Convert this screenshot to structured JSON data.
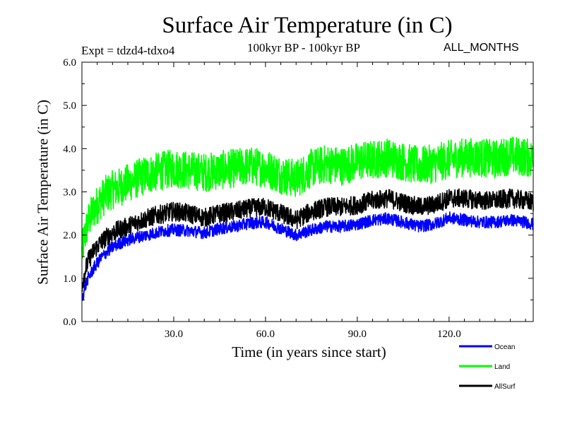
{
  "chart_data": {
    "type": "line",
    "title": "Surface Air Temperature (in C)",
    "subtitle": "100kyr BP - 100kyr BP",
    "expt_label": "Expt = tdzd4-tdxo4",
    "months_label": "ALL_MONTHS",
    "xlabel": "Time (in years since start)",
    "ylabel": "Surface Air Temperature (in C)",
    "xlim": [
      0,
      147.5
    ],
    "ylim": [
      0.0,
      6.0
    ],
    "x_ticks": [
      30,
      60,
      90,
      120
    ],
    "x_tick_labels": [
      "30.0",
      "60.0",
      "90.0",
      "120.0"
    ],
    "y_ticks": [
      0,
      1,
      2,
      3,
      4,
      5,
      6
    ],
    "y_tick_labels": [
      "0.0",
      "1.0",
      "2.0",
      "3.0",
      "4.0",
      "5.0",
      "6.0"
    ],
    "legend_position": "bottom-right, outside plot",
    "series": [
      {
        "name": "Ocean",
        "color": "#0000ff",
        "x": [
          0,
          1,
          2,
          4,
          6,
          8,
          10,
          12,
          15,
          18,
          21,
          24,
          27,
          30,
          35,
          40,
          45,
          50,
          55,
          60,
          65,
          70,
          75,
          80,
          85,
          90,
          95,
          100,
          105,
          110,
          115,
          120,
          125,
          130,
          135,
          140,
          145,
          147.5
        ],
        "values": [
          0.5,
          0.8,
          1.0,
          1.25,
          1.45,
          1.6,
          1.72,
          1.8,
          1.88,
          1.95,
          2.0,
          2.05,
          2.1,
          2.12,
          2.1,
          2.05,
          2.15,
          2.2,
          2.28,
          2.3,
          2.15,
          2.0,
          2.12,
          2.2,
          2.2,
          2.25,
          2.35,
          2.38,
          2.3,
          2.2,
          2.25,
          2.4,
          2.35,
          2.3,
          2.3,
          2.35,
          2.3,
          2.25
        ],
        "noise": 0.14
      },
      {
        "name": "Land",
        "color": "#00ff00",
        "x": [
          0,
          1,
          2,
          4,
          6,
          8,
          10,
          12,
          15,
          18,
          21,
          24,
          27,
          30,
          35,
          40,
          45,
          50,
          55,
          60,
          65,
          70,
          75,
          80,
          85,
          90,
          95,
          100,
          105,
          110,
          115,
          120,
          125,
          130,
          135,
          140,
          145,
          147.5
        ],
        "values": [
          1.6,
          2.0,
          2.3,
          2.6,
          2.8,
          2.95,
          3.05,
          3.1,
          3.2,
          3.3,
          3.4,
          3.45,
          3.5,
          3.55,
          3.5,
          3.45,
          3.5,
          3.55,
          3.6,
          3.55,
          3.4,
          3.3,
          3.55,
          3.65,
          3.6,
          3.7,
          3.75,
          3.8,
          3.7,
          3.6,
          3.65,
          3.75,
          3.8,
          3.8,
          3.75,
          3.85,
          3.8,
          3.75
        ],
        "noise": 0.45
      },
      {
        "name": "AllSurf",
        "color": "#000000",
        "x": [
          0,
          1,
          2,
          4,
          6,
          8,
          10,
          12,
          15,
          18,
          21,
          24,
          27,
          30,
          35,
          40,
          45,
          50,
          55,
          60,
          65,
          70,
          75,
          80,
          85,
          90,
          95,
          100,
          105,
          110,
          115,
          120,
          125,
          130,
          135,
          140,
          145,
          147.5
        ],
        "values": [
          0.85,
          1.15,
          1.4,
          1.65,
          1.82,
          1.95,
          2.05,
          2.12,
          2.2,
          2.3,
          2.38,
          2.45,
          2.5,
          2.55,
          2.5,
          2.4,
          2.5,
          2.55,
          2.62,
          2.65,
          2.5,
          2.35,
          2.55,
          2.65,
          2.65,
          2.7,
          2.8,
          2.85,
          2.75,
          2.65,
          2.7,
          2.85,
          2.85,
          2.8,
          2.8,
          2.85,
          2.8,
          2.75
        ],
        "noise": 0.22
      }
    ]
  }
}
